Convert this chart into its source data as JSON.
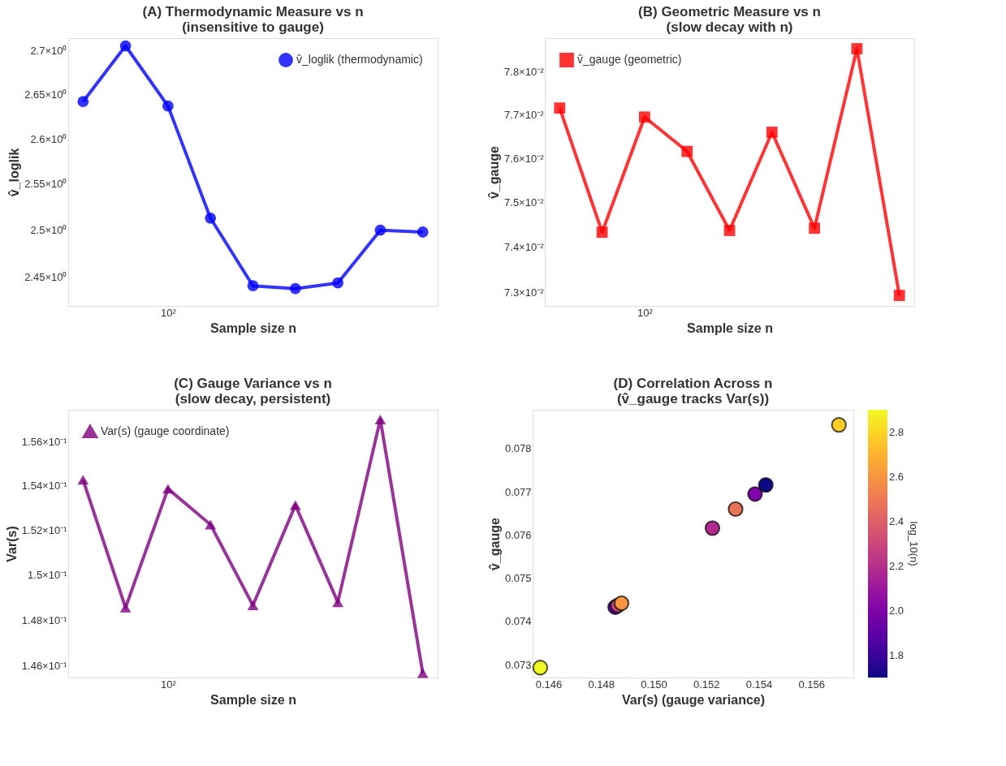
{
  "chart_data": [
    {
      "type": "line",
      "title": "(A) Thermodynamic Measure vs n\n(insensitive to gauge)",
      "xlabel": "Sample size n",
      "ylabel": "v̂_loglik",
      "log": "y",
      "grid": false,
      "legend": "top right",
      "marker": "circle",
      "line_style": "solid",
      "categories": [
        null,
        null,
        "10²",
        null,
        null,
        null,
        null,
        null,
        null
      ],
      "ylim": [
        2.42,
        2.715
      ],
      "yticks": [
        {
          "value": 2.45,
          "label": "2.45×10⁰"
        },
        {
          "value": 2.5,
          "label": "2.5×10⁰"
        },
        {
          "value": 2.55,
          "label": "2.55×10⁰"
        },
        {
          "value": 2.6,
          "label": "2.6×10⁰"
        },
        {
          "value": 2.65,
          "label": "2.65×10⁰"
        },
        {
          "value": 2.7,
          "label": "2.7×10⁰"
        }
      ],
      "series": [
        {
          "name": "v̂_loglik (thermodynamic)",
          "color": "#0000ff",
          "values": [
            2.642,
            2.706,
            2.637,
            2.513,
            2.441,
            2.438,
            2.444,
            2.5,
            2.498
          ]
        }
      ]
    },
    {
      "type": "line",
      "title": "(B) Geometric Measure vs n\n(slow decay with n)",
      "xlabel": "Sample size n",
      "ylabel": "v̂_gauge",
      "log": "y",
      "grid": false,
      "legend": "top left",
      "marker": "square",
      "line_style": "solid",
      "categories": [
        null,
        null,
        "10²",
        null,
        null,
        null,
        null,
        null,
        null
      ],
      "ylim": [
        0.0727,
        0.0788
      ],
      "yticks": [
        {
          "value": 0.073,
          "label": "7.3×10⁻²"
        },
        {
          "value": 0.074,
          "label": "7.4×10⁻²"
        },
        {
          "value": 0.075,
          "label": "7.5×10⁻²"
        },
        {
          "value": 0.076,
          "label": "7.6×10⁻²"
        },
        {
          "value": 0.077,
          "label": "7.7×10⁻²"
        },
        {
          "value": 0.078,
          "label": "7.8×10⁻²"
        }
      ],
      "series": [
        {
          "name": "v̂_gauge (geometric)",
          "color": "#ff0000",
          "values": [
            0.07716,
            0.07433,
            0.07695,
            0.07616,
            0.07437,
            0.0766,
            0.07442,
            0.07855,
            0.07293
          ]
        }
      ]
    },
    {
      "type": "line",
      "title": "(C) Gauge Variance vs n\n(slow decay, persistent)",
      "xlabel": "Sample size n",
      "ylabel": "Var(s)",
      "log": "y",
      "grid": false,
      "legend": "top left",
      "marker": "triangle",
      "line_style": "solid",
      "categories": [
        null,
        null,
        "10²",
        null,
        null,
        null,
        null,
        null,
        null
      ],
      "ylim": [
        0.1455,
        0.1575
      ],
      "yticks": [
        {
          "value": 0.146,
          "label": "1.46×10⁻¹"
        },
        {
          "value": 0.148,
          "label": "1.48×10⁻¹"
        },
        {
          "value": 0.15,
          "label": "1.5×10⁻¹"
        },
        {
          "value": 0.152,
          "label": "1.52×10⁻¹"
        },
        {
          "value": 0.154,
          "label": "1.54×10⁻¹"
        },
        {
          "value": 0.156,
          "label": "1.56×10⁻¹"
        }
      ],
      "series": [
        {
          "name": "Var(s) (gauge coordinate)",
          "color": "#800080",
          "values": [
            0.15427,
            0.14854,
            0.15386,
            0.15224,
            0.14864,
            0.15312,
            0.14878,
            0.15705,
            0.14569
          ]
        }
      ]
    },
    {
      "type": "scatter",
      "title": "(D) Correlation Across n\n(v̂_gauge tracks Var(s))",
      "xlabel": "Var(s) (gauge variance)",
      "ylabel": "v̂_gauge",
      "clabel": "log_10(n)",
      "grid": false,
      "marker": "circle",
      "x": [
        0.15427,
        0.14854,
        0.15386,
        0.15224,
        0.14864,
        0.15312,
        0.14878,
        0.15705,
        0.14569
      ],
      "values": [
        0.07716,
        0.07433,
        0.07695,
        0.07616,
        0.07437,
        0.0766,
        0.07442,
        0.07855,
        0.07293
      ],
      "cvalues": [
        1.7,
        1.88,
        2.0,
        2.18,
        2.3,
        2.48,
        2.6,
        2.78,
        2.9
      ],
      "clim": [
        1.7,
        2.9
      ],
      "cticks": [
        1.8,
        {
          "value": 2,
          "label": "2.0"
        },
        2.2,
        2.4,
        2.6,
        2.8
      ],
      "xlim": [
        0.1454,
        0.1576
      ],
      "xticks": [
        0.146,
        0.148,
        {
          "value": 0.15,
          "label": "0.150"
        },
        0.152,
        0.154,
        0.156
      ],
      "ylim": [
        0.0727,
        0.0789
      ],
      "yticks": [
        0.073,
        0.074,
        0.075,
        0.076,
        0.077,
        0.078
      ]
    }
  ]
}
